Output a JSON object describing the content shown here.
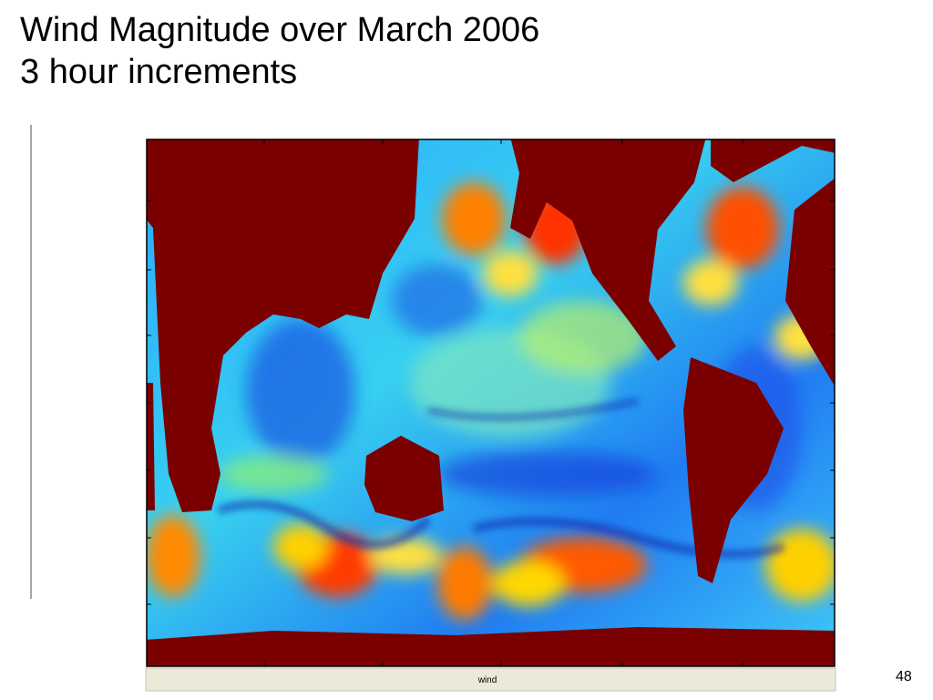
{
  "title": {
    "line1": "Wind Magnitude over March 2006",
    "line2": "3 hour increments"
  },
  "figure": {
    "caption": "wind"
  },
  "page_number": "48"
}
